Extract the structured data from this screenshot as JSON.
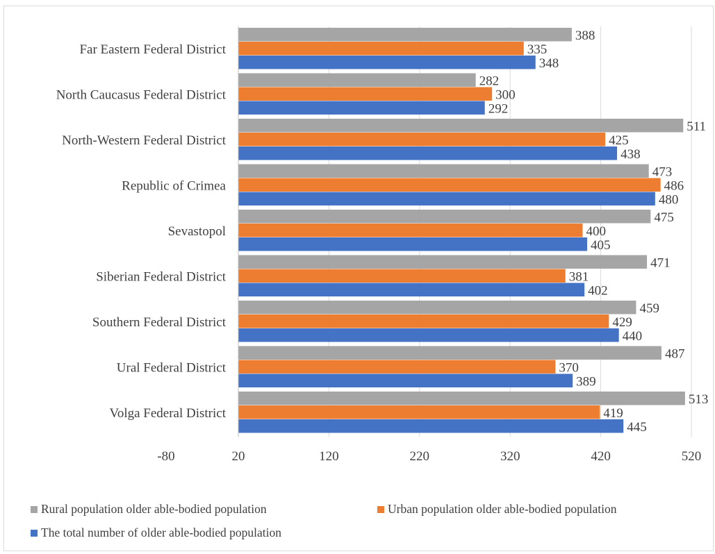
{
  "chart_data": {
    "type": "bar",
    "orientation": "horizontal",
    "categories": [
      "Far Eastern Federal District",
      "North Caucasus Federal District",
      "North-Western Federal District",
      "Republic of Crimea",
      "Sevastopol",
      "Siberian Federal District",
      "Southern Federal District",
      "Ural Federal District",
      "Volga Federal District"
    ],
    "series": [
      {
        "name": "Rural population older able-bodied population",
        "color": "#a5a5a5",
        "values": [
          388,
          282,
          511,
          473,
          475,
          471,
          459,
          487,
          513
        ]
      },
      {
        "name": "Urban population older able-bodied population",
        "color": "#ed7d31",
        "values": [
          335,
          300,
          425,
          486,
          400,
          381,
          429,
          370,
          419
        ]
      },
      {
        "name": "The total number of older able-bodied population",
        "color": "#4472c4",
        "values": [
          348,
          292,
          438,
          480,
          405,
          402,
          440,
          389,
          445
        ]
      }
    ],
    "xticks": [
      "-80",
      "20",
      "120",
      "220",
      "320",
      "420",
      "520"
    ],
    "xlim": [
      20,
      520
    ],
    "grid": true,
    "legend_position": "bottom",
    "title": "",
    "xlabel": "",
    "ylabel": ""
  }
}
